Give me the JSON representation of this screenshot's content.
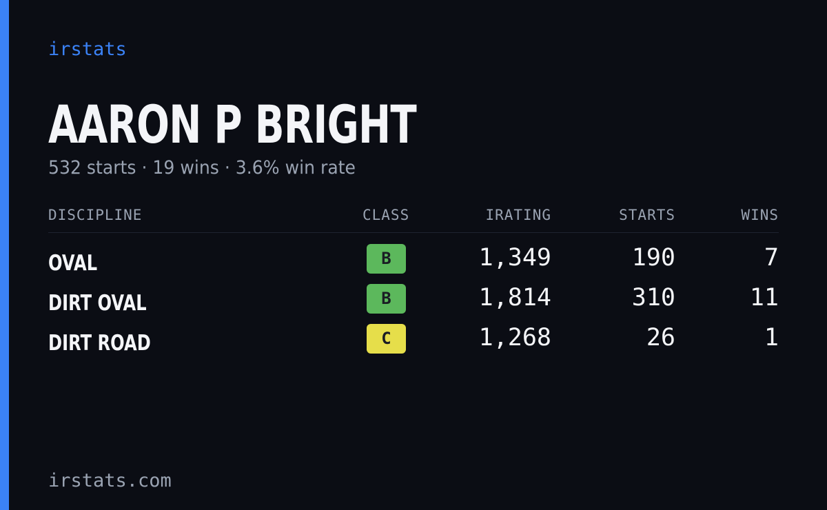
{
  "header": {
    "brand": "irstats",
    "title": "AARON P BRIGHT",
    "subtitle": "532 starts · 19 wins · 3.6% win rate"
  },
  "table": {
    "columns": [
      "DISCIPLINE",
      "CLASS",
      "IRATING",
      "STARTS",
      "WINS"
    ],
    "rows": [
      {
        "discipline": "OVAL",
        "class": "B",
        "class_color": "#5cb85c",
        "irating": "1,349",
        "starts": "190",
        "wins": "7"
      },
      {
        "discipline": "DIRT OVAL",
        "class": "B",
        "class_color": "#5cb85c",
        "irating": "1,814",
        "starts": "310",
        "wins": "11"
      },
      {
        "discipline": "DIRT ROAD",
        "class": "C",
        "class_color": "#e6de4a",
        "irating": "1,268",
        "starts": "26",
        "wins": "1"
      }
    ]
  },
  "footer": {
    "site": "irstats.com"
  }
}
